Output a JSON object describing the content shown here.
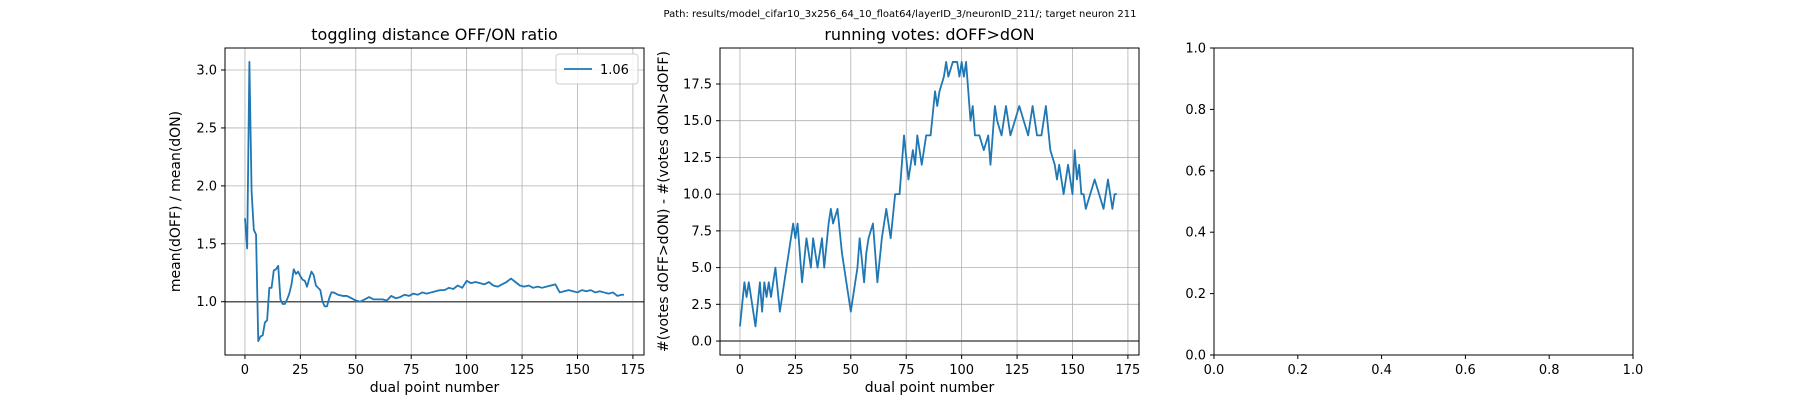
{
  "suptitle": "Path: results/model_cifar10_3x256_64_10_float64/layerID_3/neuronID_211/; target neuron 211",
  "chart_data": [
    {
      "type": "line",
      "title": "toggling distance OFF/ON ratio",
      "xlabel": "dual point number",
      "ylabel": "mean(dOFF) / mean(dON)",
      "xlim": [
        -9,
        180
      ],
      "ylim": [
        0.54,
        3.19
      ],
      "xticks": [
        0,
        25,
        50,
        75,
        100,
        125,
        150,
        175
      ],
      "yticks": [
        1.0,
        1.5,
        2.0,
        2.5,
        3.0
      ],
      "ytick_decimals": 1,
      "grid": true,
      "hline": 1.0,
      "legend": {
        "entries": [
          "1.06"
        ],
        "position": "top-right"
      },
      "series": [
        {
          "name": "1.06",
          "color": "#1f77b4",
          "x": [
            0,
            1,
            2,
            3,
            4,
            5,
            6,
            7,
            8,
            9,
            10,
            11,
            12,
            13,
            14,
            15,
            16,
            17,
            18,
            19,
            20,
            21,
            22,
            23,
            24,
            25,
            26,
            27,
            28,
            29,
            30,
            31,
            32,
            33,
            34,
            35,
            36,
            37,
            38,
            39,
            40,
            42,
            44,
            46,
            48,
            50,
            52,
            54,
            56,
            58,
            60,
            62,
            64,
            66,
            68,
            70,
            72,
            74,
            76,
            78,
            80,
            82,
            84,
            86,
            88,
            90,
            92,
            94,
            96,
            98,
            100,
            102,
            104,
            106,
            108,
            110,
            112,
            114,
            116,
            118,
            120,
            122,
            124,
            126,
            128,
            130,
            132,
            134,
            136,
            138,
            140,
            142,
            144,
            146,
            148,
            150,
            152,
            154,
            156,
            158,
            160,
            162,
            164,
            166,
            168,
            170,
            171
          ],
          "y": [
            1.72,
            1.46,
            3.07,
            1.95,
            1.62,
            1.58,
            0.66,
            0.7,
            0.71,
            0.82,
            0.84,
            1.12,
            1.12,
            1.27,
            1.28,
            1.31,
            1.02,
            0.98,
            0.98,
            1.02,
            1.07,
            1.15,
            1.28,
            1.24,
            1.26,
            1.22,
            1.19,
            1.18,
            1.13,
            1.2,
            1.26,
            1.23,
            1.14,
            1.12,
            1.1,
            1.0,
            0.96,
            0.96,
            1.03,
            1.08,
            1.08,
            1.06,
            1.05,
            1.05,
            1.03,
            1.01,
            1.0,
            1.02,
            1.04,
            1.02,
            1.02,
            1.02,
            1.01,
            1.05,
            1.03,
            1.04,
            1.06,
            1.05,
            1.07,
            1.06,
            1.08,
            1.07,
            1.08,
            1.09,
            1.1,
            1.1,
            1.12,
            1.11,
            1.14,
            1.12,
            1.18,
            1.16,
            1.17,
            1.16,
            1.15,
            1.17,
            1.14,
            1.13,
            1.15,
            1.17,
            1.2,
            1.17,
            1.14,
            1.13,
            1.14,
            1.12,
            1.13,
            1.12,
            1.13,
            1.14,
            1.15,
            1.08,
            1.09,
            1.1,
            1.09,
            1.08,
            1.1,
            1.09,
            1.1,
            1.08,
            1.09,
            1.08,
            1.07,
            1.08,
            1.05,
            1.06,
            1.06
          ]
        }
      ]
    },
    {
      "type": "line",
      "title": "running votes: dOFF>dON",
      "xlabel": "dual point number",
      "ylabel": "#(votes dOFF>dON) - #(votes dON>dOFF)",
      "xlim": [
        -9,
        180
      ],
      "ylim": [
        -0.95,
        19.95
      ],
      "xticks": [
        0,
        25,
        50,
        75,
        100,
        125,
        150,
        175
      ],
      "yticks": [
        0.0,
        2.5,
        5.0,
        7.5,
        10.0,
        12.5,
        15.0,
        17.5
      ],
      "ytick_decimals": 1,
      "grid": true,
      "hline": 0.0,
      "series": [
        {
          "name": "",
          "color": "#1f77b4",
          "x": [
            0,
            2,
            3,
            4,
            5,
            7,
            9,
            10,
            11,
            12,
            13,
            14,
            16,
            18,
            20,
            22,
            24,
            25,
            26,
            28,
            30,
            32,
            33,
            35,
            37,
            38,
            40,
            41,
            42,
            44,
            46,
            48,
            50,
            52,
            53,
            54,
            56,
            57,
            58,
            60,
            62,
            64,
            66,
            68,
            70,
            72,
            74,
            76,
            78,
            79,
            80,
            82,
            84,
            86,
            88,
            89,
            90,
            92,
            93,
            94,
            96,
            98,
            99,
            100,
            101,
            102,
            103,
            104,
            105,
            106,
            107,
            108,
            110,
            112,
            113,
            114,
            115,
            116,
            118,
            120,
            122,
            124,
            126,
            128,
            130,
            132,
            134,
            136,
            138,
            140,
            142,
            143,
            144,
            146,
            148,
            150,
            151,
            152,
            153,
            154,
            155,
            156,
            158,
            160,
            162,
            164,
            166,
            168,
            169,
            170
          ],
          "y": [
            1,
            4,
            3,
            4,
            3,
            1,
            4,
            2,
            4,
            3,
            4,
            3,
            5,
            2,
            4,
            6,
            8,
            7,
            8,
            4,
            7,
            5,
            7,
            5,
            7,
            5,
            8,
            9,
            8,
            9,
            6,
            4,
            2,
            4,
            5,
            7,
            4,
            6,
            7,
            8,
            4,
            7,
            9,
            7,
            10,
            10,
            14,
            11,
            13,
            12,
            14,
            12,
            14,
            14,
            17,
            16,
            17,
            18,
            19,
            18,
            19,
            19,
            18,
            19,
            18,
            19,
            17,
            15,
            16,
            14,
            14,
            14,
            13,
            14,
            12,
            14,
            16,
            15,
            14,
            16,
            14,
            15,
            16,
            15,
            14,
            16,
            14,
            14,
            16,
            13,
            12,
            11,
            12,
            10,
            12,
            10,
            13,
            11,
            12,
            10,
            10,
            9,
            10,
            11,
            10,
            9,
            11,
            9,
            10,
            10
          ]
        }
      ]
    },
    {
      "type": "line",
      "title": "",
      "xlabel": "",
      "ylabel": "",
      "xlim": [
        0,
        1
      ],
      "ylim": [
        0,
        1
      ],
      "xticks": [
        0.0,
        0.2,
        0.4,
        0.6,
        0.8,
        1.0
      ],
      "yticks": [
        0.0,
        0.2,
        0.4,
        0.6,
        0.8,
        1.0
      ],
      "ytick_decimals": 1,
      "grid": false,
      "series": []
    }
  ]
}
